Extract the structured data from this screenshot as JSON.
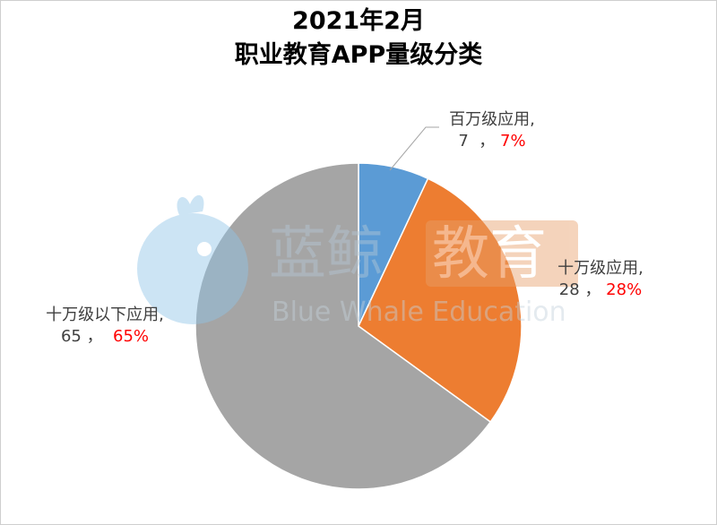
{
  "title": {
    "line1": "2021年2月",
    "line2": "职业教育APP量级分类"
  },
  "watermark": {
    "cn1": "蓝鲸",
    "cn2": "教育",
    "en": "Blue Whale Education"
  },
  "chart_data": {
    "type": "pie",
    "title": "2021年2月 职业教育APP量级分类",
    "slices": [
      {
        "name": "百万级应用",
        "value": 7,
        "percent": "7%",
        "color": "#5b9bd5"
      },
      {
        "name": "十万级应用",
        "value": 28,
        "percent": "28%",
        "color": "#ed7d31"
      },
      {
        "name": "十万级以下应用",
        "value": 65,
        "percent": "65%",
        "color": "#a5a5a5"
      }
    ],
    "legend": "none"
  },
  "labels": [
    {
      "name": "百万级应用,",
      "value": "7",
      "sep": "，",
      "pct": "7%"
    },
    {
      "name": "十万级应用,",
      "value": "28",
      "sep": "，",
      "pct": "28%"
    },
    {
      "name": "十万级以下应用,",
      "value": "65",
      "sep": "，",
      "pct": "65%"
    }
  ]
}
